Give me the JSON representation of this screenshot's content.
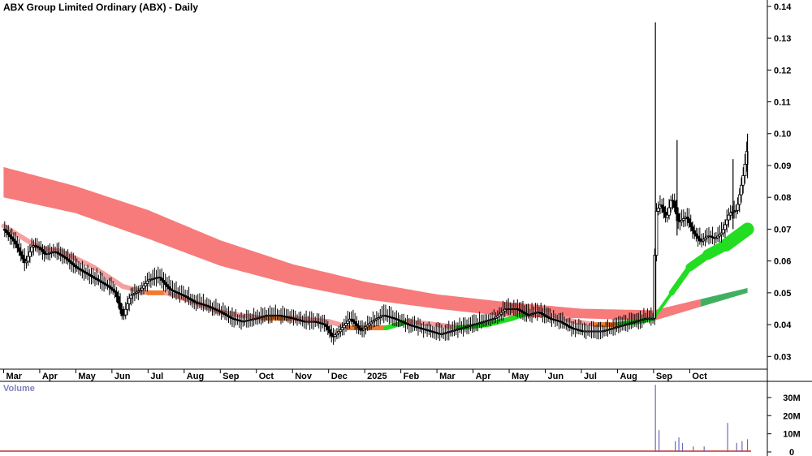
{
  "chart_data": [
    {
      "type": "candlestick",
      "title": "ABX Group Limited Ordinary (ABX) - Daily",
      "y_ticks": [
        0.03,
        0.04,
        0.05,
        0.06,
        0.07,
        0.08,
        0.09,
        0.1,
        0.11,
        0.12,
        0.13,
        0.14
      ],
      "y_tick_labels": [
        "0.03",
        "0.04",
        "0.05",
        "0.06",
        "0.07",
        "0.08",
        "0.09",
        "0.10",
        "0.11",
        "0.12",
        "0.13",
        "0.14"
      ],
      "ylim": [
        0.026,
        0.142
      ],
      "x_labels": [
        "Mar",
        "Apr",
        "May",
        "Jun",
        "Jul",
        "Aug",
        "Sep",
        "Oct",
        "Nov",
        "Dec",
        "2025",
        "Feb",
        "Mar",
        "Apr",
        "May",
        "Jun",
        "Jul",
        "Aug",
        "Sep",
        "Oct"
      ],
      "x_label_months": [
        0,
        1,
        2,
        3,
        4,
        5,
        6,
        7,
        8,
        9,
        10,
        11,
        12,
        13,
        14,
        15,
        16,
        17,
        18,
        19
      ],
      "x_month_span": [
        -0.1,
        20.7
      ],
      "price_path": [
        [
          0,
          0.07
        ],
        [
          0.3,
          0.066
        ],
        [
          0.6,
          0.059
        ],
        [
          0.8,
          0.065
        ],
        [
          1.0,
          0.064
        ],
        [
          1.15,
          0.062
        ],
        [
          1.4,
          0.063
        ],
        [
          1.7,
          0.061
        ],
        [
          2.0,
          0.058
        ],
        [
          2.3,
          0.056
        ],
        [
          2.6,
          0.054
        ],
        [
          2.9,
          0.052
        ],
        [
          3.1,
          0.05
        ],
        [
          3.3,
          0.042
        ],
        [
          3.5,
          0.049
        ],
        [
          3.8,
          0.051
        ],
        [
          4.0,
          0.054
        ],
        [
          4.3,
          0.055
        ],
        [
          4.6,
          0.051
        ],
        [
          5.0,
          0.049
        ],
        [
          5.3,
          0.047
        ],
        [
          5.6,
          0.046
        ],
        [
          6.0,
          0.044
        ],
        [
          6.3,
          0.042
        ],
        [
          6.6,
          0.041
        ],
        [
          7.0,
          0.042
        ],
        [
          7.3,
          0.043
        ],
        [
          7.6,
          0.043
        ],
        [
          8.0,
          0.042
        ],
        [
          8.3,
          0.041
        ],
        [
          8.6,
          0.041
        ],
        [
          8.9,
          0.04
        ],
        [
          9.1,
          0.036
        ],
        [
          9.3,
          0.038
        ],
        [
          9.6,
          0.042
        ],
        [
          9.9,
          0.038
        ],
        [
          10.2,
          0.041
        ],
        [
          10.5,
          0.043
        ],
        [
          10.8,
          0.042
        ],
        [
          11.2,
          0.04
        ],
        [
          11.5,
          0.039
        ],
        [
          11.8,
          0.038
        ],
        [
          12.1,
          0.037
        ],
        [
          12.4,
          0.038
        ],
        [
          12.7,
          0.039
        ],
        [
          13.0,
          0.04
        ],
        [
          13.3,
          0.041
        ],
        [
          13.6,
          0.042
        ],
        [
          13.9,
          0.045
        ],
        [
          14.2,
          0.045
        ],
        [
          14.5,
          0.043
        ],
        [
          14.8,
          0.044
        ],
        [
          15.1,
          0.042
        ],
        [
          15.4,
          0.041
        ],
        [
          15.7,
          0.039
        ],
        [
          16.0,
          0.038
        ],
        [
          16.3,
          0.038
        ],
        [
          16.6,
          0.038
        ],
        [
          16.9,
          0.039
        ],
        [
          17.2,
          0.04
        ],
        [
          17.5,
          0.041
        ],
        [
          17.8,
          0.042
        ],
        [
          18.0,
          0.042
        ],
        [
          18.05,
          0.075
        ],
        [
          18.2,
          0.078
        ],
        [
          18.35,
          0.073
        ],
        [
          18.5,
          0.08
        ],
        [
          18.7,
          0.072
        ],
        [
          18.9,
          0.074
        ],
        [
          19.1,
          0.069
        ],
        [
          19.3,
          0.066
        ],
        [
          19.5,
          0.068
        ],
        [
          19.7,
          0.067
        ],
        [
          19.9,
          0.069
        ],
        [
          20.1,
          0.075
        ],
        [
          20.3,
          0.076
        ],
        [
          20.5,
          0.088
        ],
        [
          20.6,
          0.096
        ]
      ],
      "spikes": [
        {
          "x": 18.05,
          "high": 0.135,
          "low": 0.042
        },
        {
          "x": 18.65,
          "high": 0.098,
          "low": 0.068
        },
        {
          "x": 20.2,
          "high": 0.092,
          "low": 0.07
        },
        {
          "x": 20.6,
          "high": 0.1,
          "low": 0.086
        }
      ],
      "long_ribbon": {
        "color": "#f77b7b",
        "upper": [
          [
            0,
            0.0895
          ],
          [
            2,
            0.0835
          ],
          [
            4,
            0.076
          ],
          [
            6,
            0.0665
          ],
          [
            8,
            0.059
          ],
          [
            10,
            0.0535
          ],
          [
            12,
            0.0495
          ],
          [
            14,
            0.047
          ],
          [
            16,
            0.045
          ],
          [
            18,
            0.0445
          ],
          [
            20.6,
            0.0515
          ]
        ],
        "lower": [
          [
            0,
            0.08
          ],
          [
            2,
            0.075
          ],
          [
            4,
            0.067
          ],
          [
            6,
            0.0585
          ],
          [
            8,
            0.0525
          ],
          [
            10,
            0.048
          ],
          [
            12,
            0.045
          ],
          [
            14,
            0.0425
          ],
          [
            16,
            0.042
          ],
          [
            18,
            0.0412
          ],
          [
            20.6,
            0.05
          ]
        ],
        "up_color": "#40b060",
        "up_from": 19.3
      },
      "short_ribbon": {
        "down_color": "#f4a0a0",
        "mid_color": "#f07a30",
        "up_color": "#22dd22",
        "path": [
          [
            0,
            0.071
          ],
          [
            1,
            0.064
          ],
          [
            1.6,
            0.063
          ],
          [
            2.5,
            0.058
          ],
          [
            3.3,
            0.052
          ],
          [
            4.0,
            0.05
          ],
          [
            4.5,
            0.05
          ],
          [
            5.3,
            0.047
          ],
          [
            6.0,
            0.044
          ],
          [
            6.5,
            0.043
          ],
          [
            7.2,
            0.042
          ],
          [
            8.0,
            0.042
          ],
          [
            9.0,
            0.041
          ],
          [
            9.6,
            0.039
          ],
          [
            10.6,
            0.039
          ],
          [
            11.2,
            0.041
          ],
          [
            12.0,
            0.04
          ],
          [
            12.6,
            0.039
          ],
          [
            13.4,
            0.04
          ],
          [
            14.1,
            0.042
          ],
          [
            14.6,
            0.044
          ],
          [
            15.2,
            0.043
          ],
          [
            15.8,
            0.041
          ],
          [
            16.4,
            0.04
          ],
          [
            17.0,
            0.04
          ],
          [
            17.6,
            0.041
          ],
          [
            18.0,
            0.042
          ],
          [
            18.5,
            0.05
          ],
          [
            19.0,
            0.058
          ],
          [
            19.5,
            0.062
          ],
          [
            20.0,
            0.065
          ],
          [
            20.6,
            0.07
          ]
        ]
      },
      "volume": {
        "title": "Volume",
        "y_tick_labels": [
          "30M",
          "20M",
          "10M",
          "0"
        ],
        "y_ticks": [
          30,
          20,
          10,
          0
        ],
        "ylim": [
          0,
          38
        ],
        "bars": [
          [
            18.05,
            37
          ],
          [
            18.15,
            12
          ],
          [
            18.6,
            6
          ],
          [
            18.7,
            8
          ],
          [
            18.8,
            5
          ],
          [
            19.1,
            3
          ],
          [
            19.4,
            3
          ],
          [
            20.05,
            16
          ],
          [
            20.3,
            5
          ],
          [
            20.45,
            6
          ],
          [
            20.6,
            7
          ]
        ],
        "baseline_color": "#c03030"
      }
    }
  ]
}
